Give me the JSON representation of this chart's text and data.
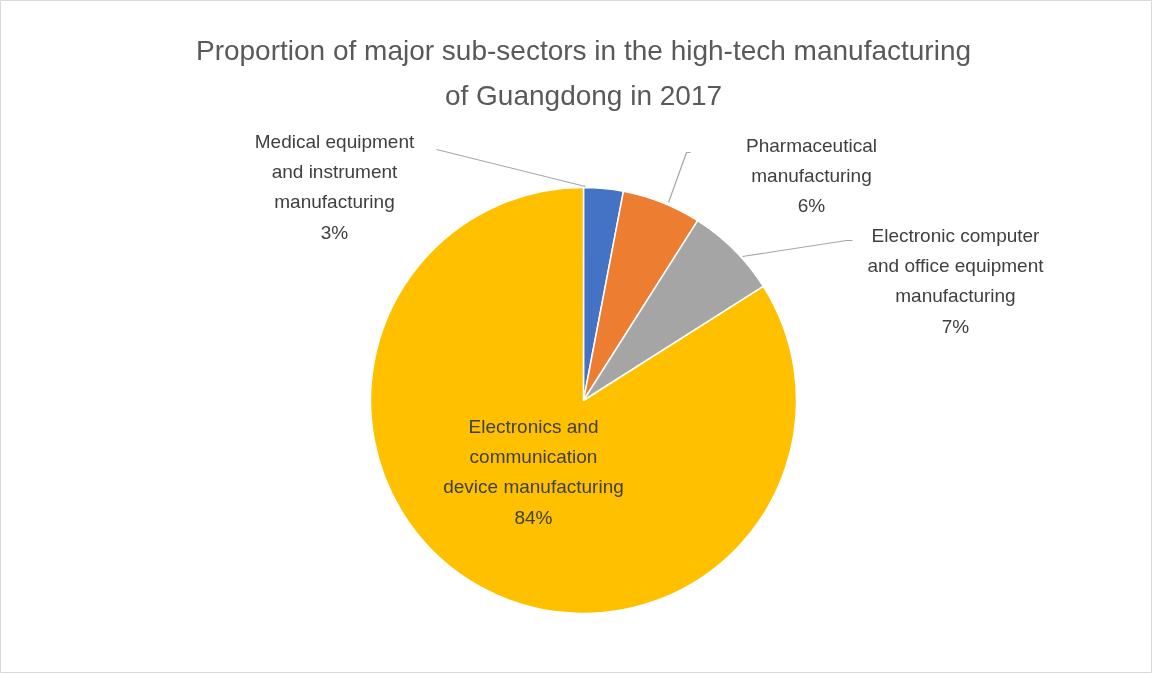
{
  "chart_data": {
    "type": "pie",
    "title": "Proportion of major sub-sectors in the high-tech manufacturing of Guangdong in 2017",
    "categories": [
      "Medical equipment and instrument manufacturing",
      "Pharmaceutical manufacturing",
      "Electronic computer and office equipment manufacturing",
      "Electronics and communication device manufacturing"
    ],
    "values": [
      3,
      6,
      7,
      84
    ],
    "colors": [
      "#4472c4",
      "#ed7d31",
      "#a5a5a5",
      "#ffc000"
    ],
    "value_labels": [
      "3%",
      "6%",
      "7%",
      "84%"
    ]
  }
}
